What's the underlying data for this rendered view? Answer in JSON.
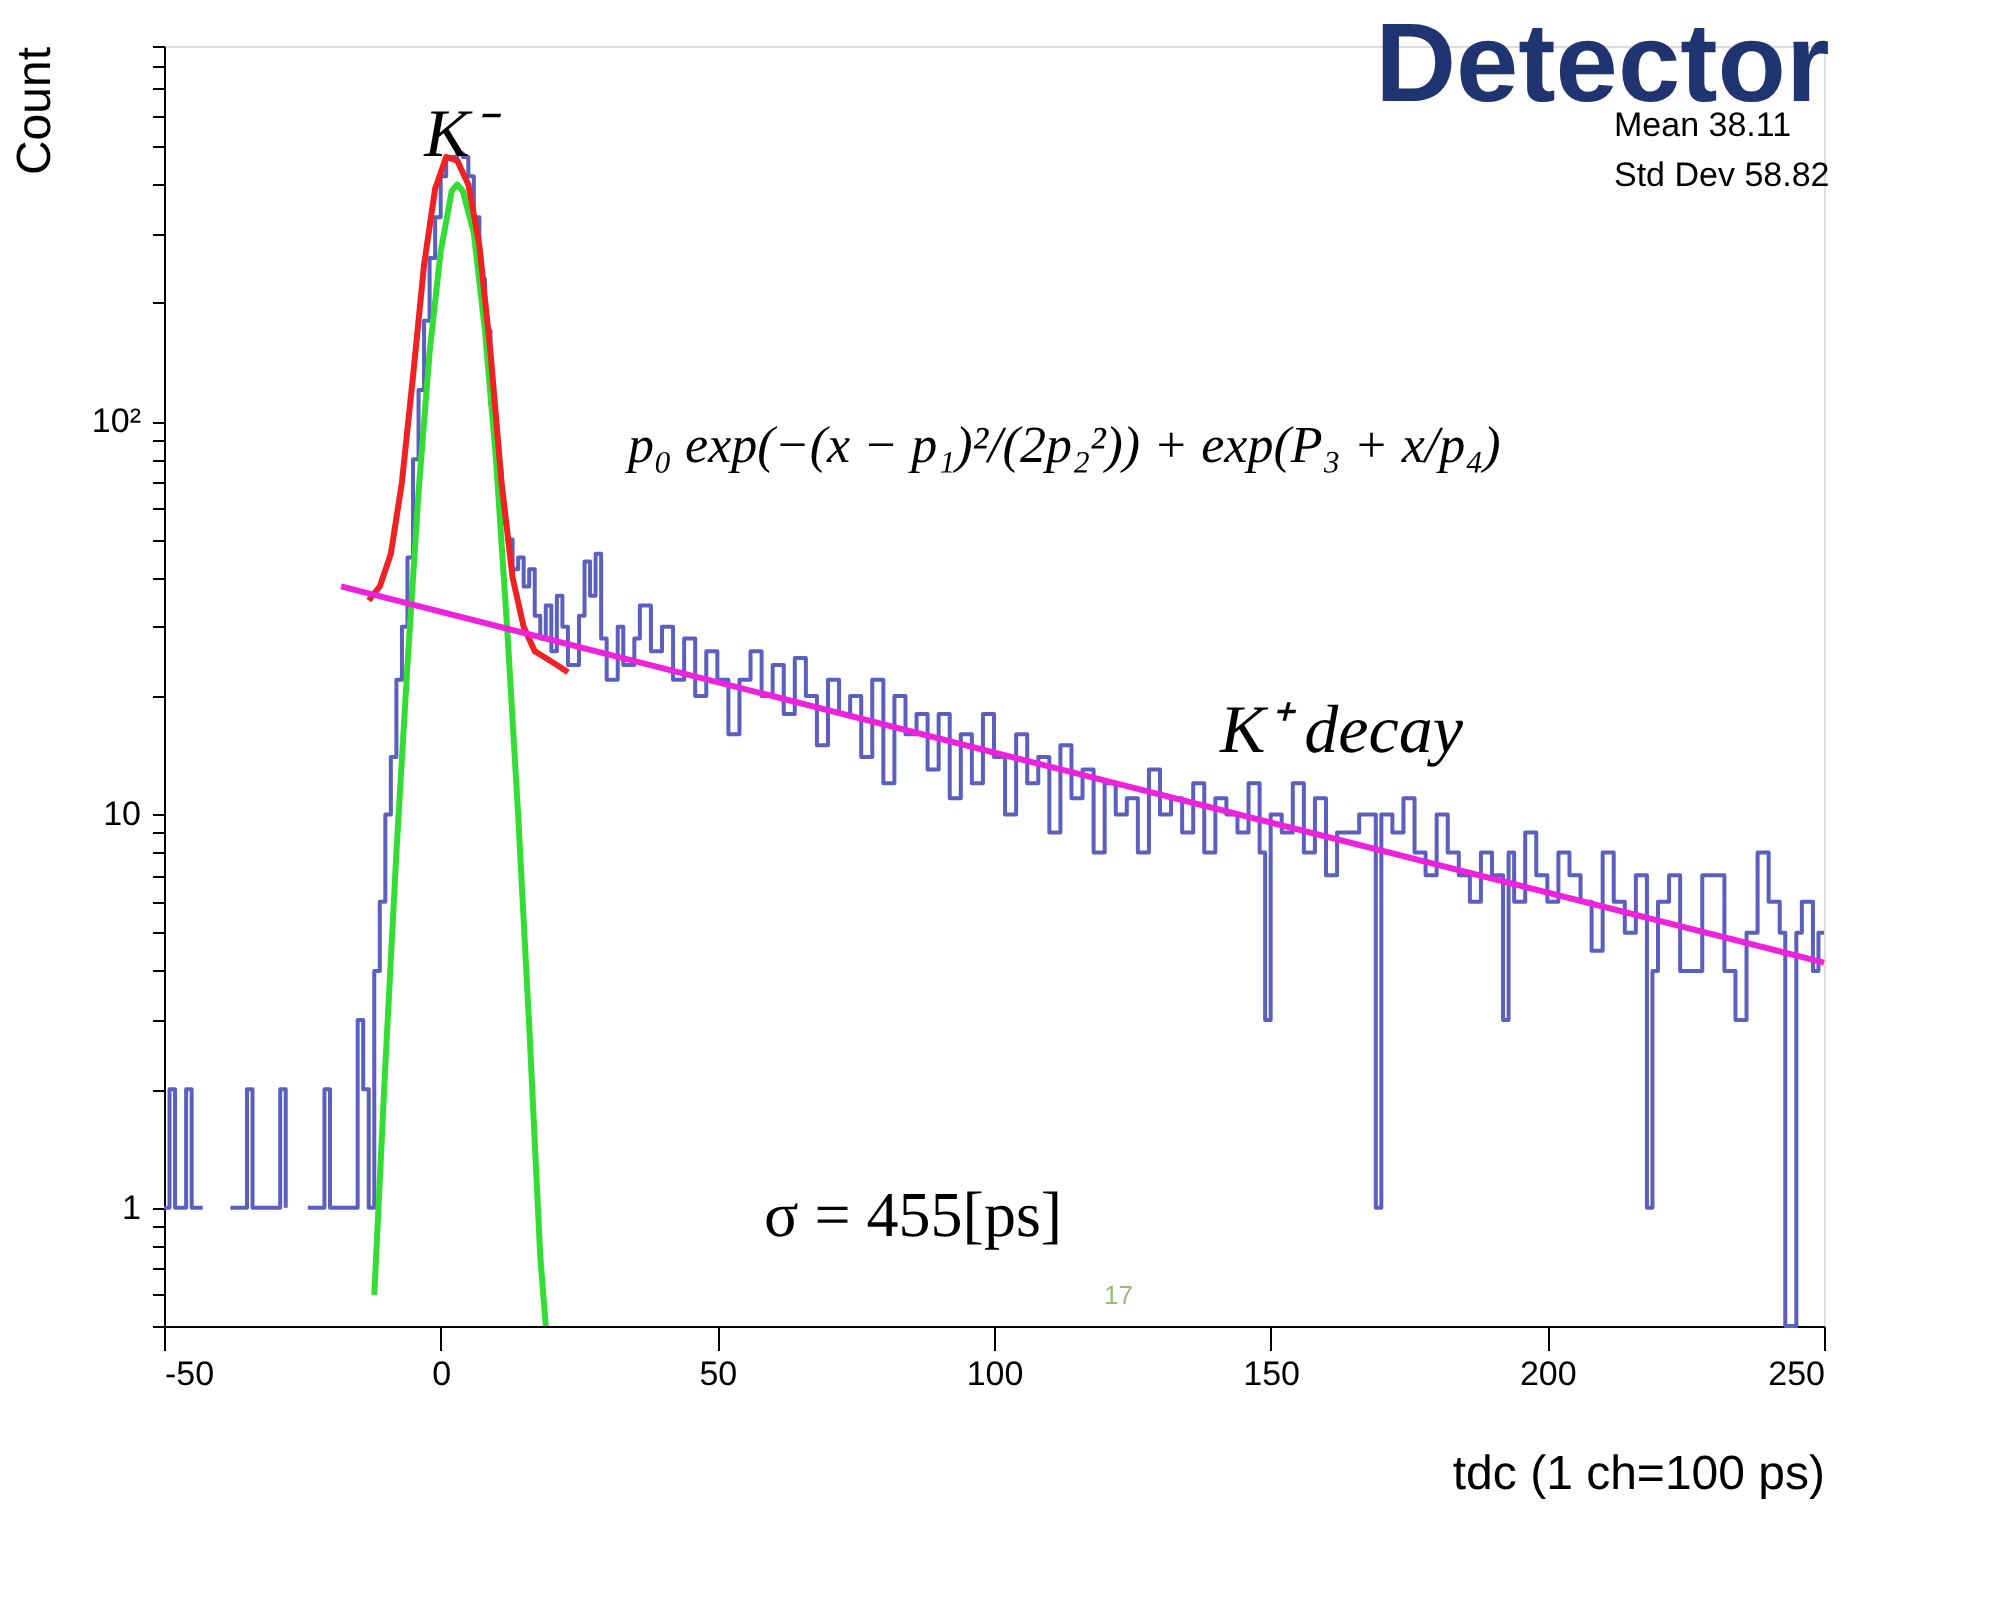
{
  "chart_data": {
    "type": "step",
    "title": "Detector",
    "xlabel": "tdc (1 ch=100 ps)",
    "ylabel": "Count",
    "xlim": [
      -50,
      250
    ],
    "xticks": [
      -50,
      0,
      50,
      100,
      150,
      200,
      250
    ],
    "ylim": [
      0.5,
      900
    ],
    "log": true,
    "yticks": [
      {
        "value": 0.5,
        "label": null
      },
      {
        "value": 0.6,
        "label": null
      },
      {
        "value": 0.7,
        "label": null
      },
      {
        "value": 0.8,
        "label": null
      },
      {
        "value": 0.9,
        "label": null
      },
      1,
      {
        "value": 2,
        "label": null
      },
      {
        "value": 3,
        "label": null
      },
      {
        "value": 4,
        "label": null
      },
      {
        "value": 5,
        "label": null
      },
      {
        "value": 6,
        "label": null
      },
      {
        "value": 7,
        "label": null
      },
      {
        "value": 8,
        "label": null
      },
      {
        "value": 9,
        "label": null
      },
      10,
      {
        "value": 20,
        "label": null
      },
      {
        "value": 30,
        "label": null
      },
      {
        "value": 40,
        "label": null
      },
      {
        "value": 50,
        "label": null
      },
      {
        "value": 60,
        "label": null
      },
      {
        "value": 70,
        "label": null
      },
      {
        "value": 80,
        "label": null
      },
      {
        "value": 90,
        "label": null
      },
      {
        "value": 100,
        "label": "10²"
      },
      {
        "value": 200,
        "label": null
      },
      {
        "value": 300,
        "label": null
      },
      {
        "value": 400,
        "label": null
      },
      {
        "value": 500,
        "label": null
      },
      {
        "value": 600,
        "label": null
      },
      {
        "value": 700,
        "label": null
      },
      {
        "value": 800,
        "label": null
      },
      {
        "value": 900,
        "label": null
      }
    ],
    "grid": false,
    "series": [
      {
        "color": "#5b5fbf",
        "x": [
          -50,
          -49,
          -48,
          -46,
          -45,
          -43,
          -40,
          -38,
          -35,
          -34,
          -31,
          -29,
          -28,
          -26,
          -24,
          -22,
          -21,
          -20,
          -17,
          -15,
          -14,
          -13,
          -12,
          -11,
          -10,
          -9,
          -8,
          -7,
          -6,
          -5,
          -4,
          -3,
          -2,
          -1,
          0,
          1,
          2,
          3,
          4,
          5,
          6,
          7,
          8,
          9,
          10,
          11,
          12,
          13,
          14,
          15,
          16,
          17,
          18,
          19,
          20,
          21,
          22,
          23,
          25,
          26,
          27,
          28,
          29,
          30,
          32,
          33,
          35,
          36,
          38,
          40,
          42,
          44,
          46,
          48,
          50,
          52,
          54,
          56,
          58,
          60,
          62,
          64,
          66,
          68,
          70,
          72,
          74,
          76,
          78,
          80,
          82,
          84,
          86,
          88,
          90,
          92,
          94,
          96,
          98,
          100,
          102,
          104,
          106,
          108,
          110,
          112,
          114,
          116,
          118,
          120,
          122,
          124,
          126,
          128,
          130,
          132,
          134,
          136,
          138,
          140,
          142,
          144,
          146,
          148,
          149,
          150,
          152,
          154,
          156,
          158,
          160,
          162,
          166,
          169,
          170,
          172,
          174,
          176,
          178,
          180,
          182,
          184,
          186,
          188,
          190,
          192,
          193,
          194,
          196,
          198,
          200,
          202,
          204,
          206,
          208,
          210,
          212,
          214,
          216,
          218,
          219,
          220,
          222,
          224,
          226,
          228,
          230,
          232,
          234,
          236,
          238,
          240,
          242,
          243,
          245,
          246,
          248,
          249,
          250
        ],
        "values": [
          1,
          2,
          1,
          2,
          1,
          1,
          null,
          1,
          2,
          1,
          1,
          2,
          1,
          null,
          1,
          1,
          2,
          1,
          1,
          3,
          2,
          1,
          4,
          6,
          10,
          14,
          22,
          30,
          45,
          80,
          120,
          180,
          260,
          330,
          420,
          470,
          470,
          480,
          470,
          420,
          330,
          230,
          170,
          110,
          75,
          55,
          50,
          42,
          45,
          38,
          42,
          32,
          28,
          34,
          26,
          36,
          30,
          24,
          32,
          44,
          36,
          46,
          28,
          22,
          30,
          24,
          28,
          34,
          26,
          30,
          22,
          28,
          20,
          26,
          22,
          16,
          22,
          26,
          20,
          24,
          18,
          25,
          20,
          15,
          22,
          18,
          20,
          14,
          22,
          12,
          20,
          16,
          18,
          13,
          18,
          11,
          16,
          12,
          18,
          14,
          10,
          16,
          12,
          14,
          9,
          15,
          11,
          13,
          8,
          12,
          10,
          11,
          8,
          13,
          10,
          11,
          9,
          12,
          8,
          11,
          10,
          9,
          12,
          8,
          3,
          10,
          9,
          12,
          8,
          11,
          7,
          9,
          10,
          1,
          10,
          9,
          11,
          8,
          7,
          10,
          8,
          7,
          6,
          8,
          7,
          3,
          8,
          6,
          9,
          7,
          6,
          8,
          7,
          6,
          4.5,
          8,
          6,
          5,
          7,
          1,
          4,
          6,
          7,
          4,
          4,
          7,
          7,
          4,
          3,
          5,
          8,
          6,
          5,
          0.5,
          5,
          6,
          4,
          5,
          5
        ]
      },
      {
        "type": "line",
        "color": "#33dd33",
        "x": [
          -12,
          -10,
          -8,
          -6,
          -4,
          -2,
          0,
          2,
          3,
          4,
          6,
          8,
          10,
          12,
          14,
          16,
          18,
          19
        ],
        "values": [
          0.6,
          2.3,
          8,
          24,
          66,
          150,
          270,
          385,
          400,
          385,
          300,
          170,
          80,
          30,
          10,
          2.9,
          0.75,
          0.5
        ]
      },
      {
        "type": "line",
        "color": "#ee2222",
        "x": [
          -13,
          -11,
          -9,
          -7,
          -5,
          -3,
          -1,
          1,
          3,
          5,
          7,
          9,
          11,
          13,
          15,
          17,
          19,
          21,
          23
        ],
        "values": [
          35,
          38,
          46,
          70,
          130,
          250,
          390,
          470,
          460,
          400,
          280,
          150,
          70,
          40,
          30,
          26,
          25,
          24,
          23
        ]
      },
      {
        "type": "line",
        "color": "#ee22dd",
        "x": [
          -18,
          116,
          250
        ],
        "values": [
          38,
          12.6,
          4.2
        ]
      }
    ],
    "annotations": [
      "K⁻",
      "K⁺ decay",
      "p₀ exp(−(x − p₁)²/(2p₂²)) + exp(P₃ + x/p₄)",
      "σ = 455[ps]",
      "Mean 38.11",
      "Std Dev 58.82",
      "17"
    ]
  }
}
